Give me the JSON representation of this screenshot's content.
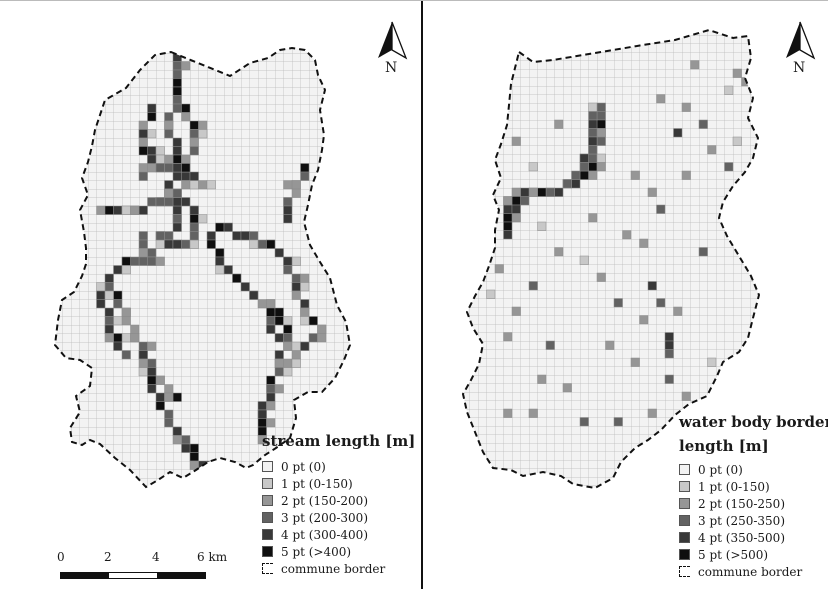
{
  "colors": {
    "grid_line": "#b9b9b9",
    "class_0": "#f3f3f3",
    "class_1": "#c8c8c8",
    "class_2": "#969696",
    "class_3": "#626262",
    "class_4": "#383838",
    "class_5": "#0f0f0f",
    "border": "#111111"
  },
  "left_map": {
    "north_label": "N",
    "legend": {
      "title": "stream length [m]",
      "items": [
        {
          "label": "0 pt (0)",
          "color": "#f3f3f3"
        },
        {
          "label": "1 pt (0-150)",
          "color": "#c8c8c8"
        },
        {
          "label": "2 pt (150-200)",
          "color": "#969696"
        },
        {
          "label": "3 pt (200-300)",
          "color": "#626262"
        },
        {
          "label": "4 pt (300-400)",
          "color": "#383838"
        },
        {
          "label": "5 pt (>400)",
          "color": "#0f0f0f"
        }
      ],
      "border_label": "commune border"
    },
    "scale": {
      "ticks": [
        "0",
        "2",
        "4",
        "6 km"
      ]
    }
  },
  "right_map": {
    "north_label": "N",
    "legend": {
      "title_line1": "water body border",
      "title_line2": "length [m]",
      "items": [
        {
          "label": "0 pt (0)",
          "color": "#f3f3f3"
        },
        {
          "label": "1 pt (0-150)",
          "color": "#c8c8c8"
        },
        {
          "label": "2 pt (150-250)",
          "color": "#969696"
        },
        {
          "label": "3 pt (250-350)",
          "color": "#626262"
        },
        {
          "label": "4 pt (350-500)",
          "color": "#383838"
        },
        {
          "label": "5 pt (>500)",
          "color": "#0f0f0f"
        }
      ],
      "border_label": "commune border"
    }
  }
}
